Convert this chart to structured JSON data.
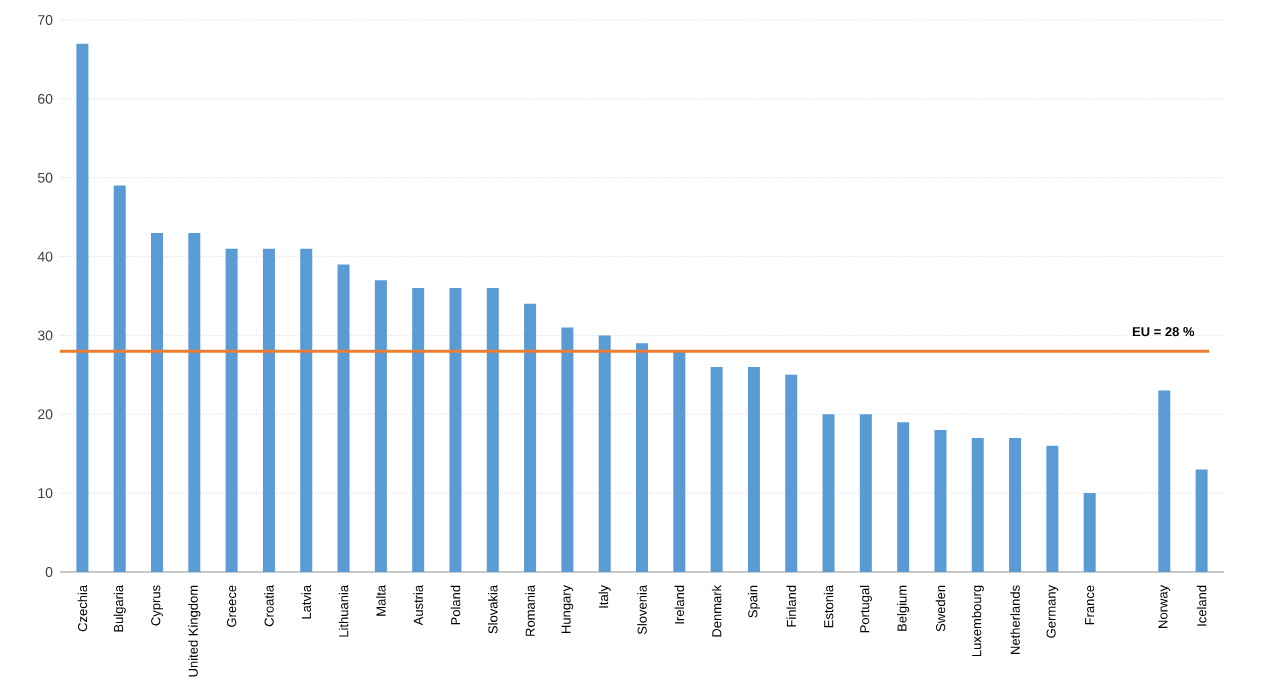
{
  "chart_data": {
    "type": "bar",
    "categories": [
      "Czechia",
      "Bulgaria",
      "Cyprus",
      "United Kingdom",
      "Greece",
      "Croatia",
      "Latvia",
      "Lithuania",
      "Malta",
      "Austria",
      "Poland",
      "Slovakia",
      "Romania",
      "Hungary",
      "Italy",
      "Slovenia",
      "Ireland",
      "Denmark",
      "Spain",
      "Finland",
      "Estonia",
      "Portugal",
      "Belgium",
      "Sweden",
      "Luxembourg",
      "Netherlands",
      "Germany",
      "France",
      null,
      "Norway",
      "Iceland"
    ],
    "values": [
      67,
      49,
      43,
      43,
      41,
      41,
      41,
      39,
      37,
      36,
      36,
      36,
      34,
      31,
      30,
      29,
      28,
      26,
      26,
      25,
      20,
      20,
      19,
      18,
      17,
      17,
      16,
      10,
      null,
      23,
      13
    ],
    "color": "#5b9bd5",
    "ylim": [
      0,
      70
    ],
    "yticks": [
      0,
      10,
      20,
      30,
      40,
      50,
      60,
      70
    ],
    "grid": "y",
    "ref_lines": [
      {
        "axis": "y",
        "value": 28,
        "label": "EU = 28 %",
        "color": "#ed7d31"
      }
    ]
  }
}
